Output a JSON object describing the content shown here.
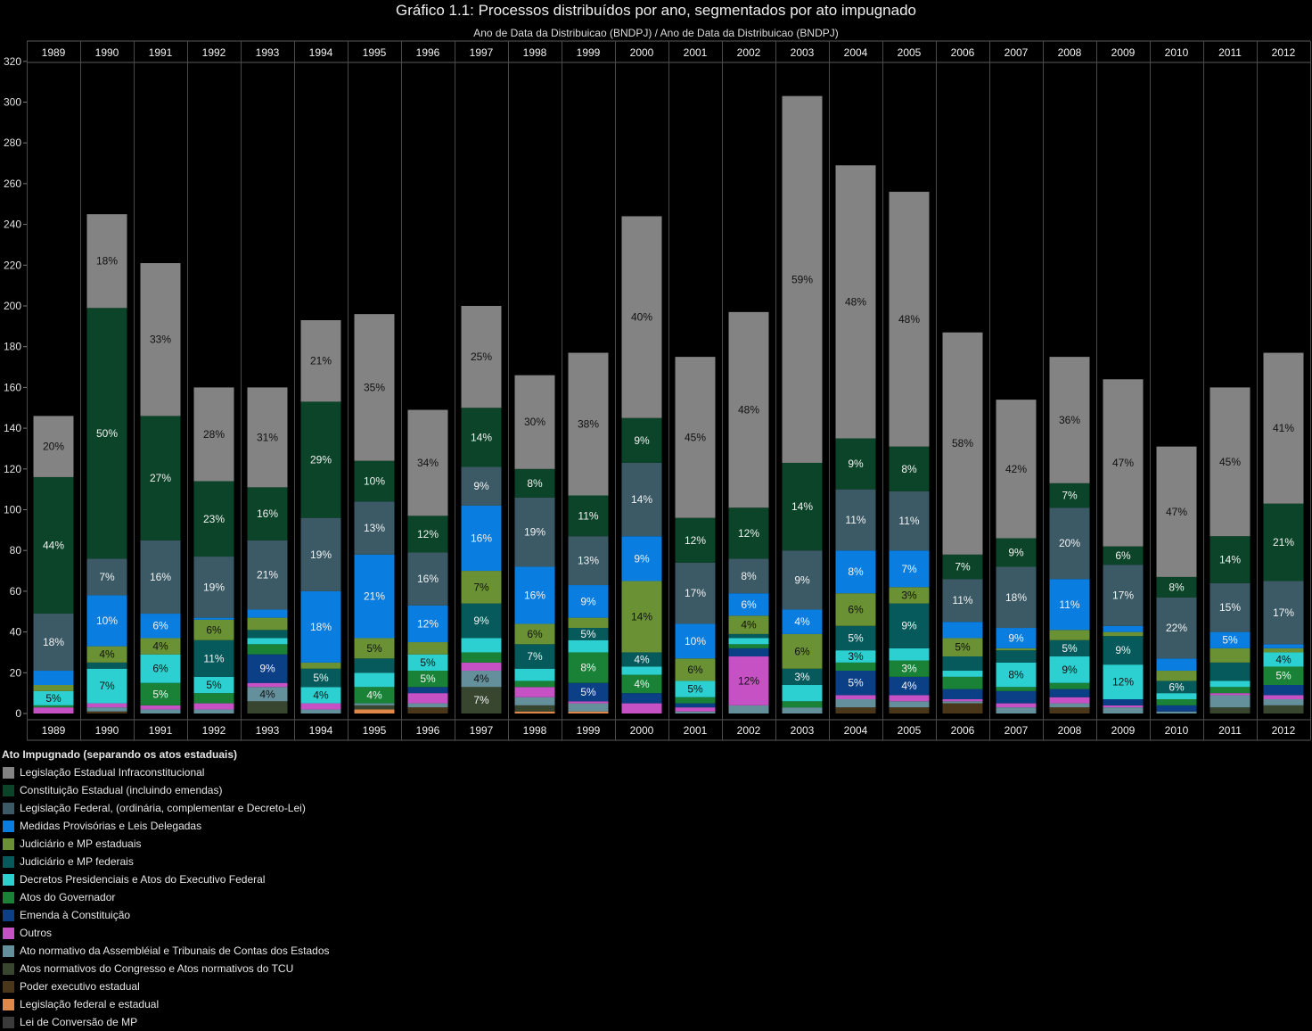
{
  "title": "Gráfico 1.1: Processos distribuídos por ano, segmentados por ato impugnado",
  "subtitle": "Ano de Data da Distribuicao (BNDPJ)  /  Ano de Data da Distribuicao (BNDPJ)",
  "legend": {
    "title": "Ato Impugnado (separando os atos estaduais)",
    "items": [
      {
        "label": "Legislação Estadual Infraconstitucional",
        "color": "#838383"
      },
      {
        "label": "Constituição Estadual (incluindo emendas)",
        "color": "#0b4428"
      },
      {
        "label": "Legislação Federal, (ordinária, complementar e Decreto-Lei)",
        "color": "#3b5a66"
      },
      {
        "label": "Medidas Provisórias e Leis Delegadas",
        "color": "#0a7de0"
      },
      {
        "label": "Judiciário e MP estaduais",
        "color": "#6a9234"
      },
      {
        "label": "Judiciário e MP federais",
        "color": "#075a5c"
      },
      {
        "label": "Decretos Presidenciais e Atos do Executivo Federal",
        "color": "#2dd0d0"
      },
      {
        "label": "Atos do Governador",
        "color": "#1a8236"
      },
      {
        "label": "Emenda à Constituição",
        "color": "#0b3f86"
      },
      {
        "label": "Outros",
        "color": "#c651c4"
      },
      {
        "label": "Ato normativo da Assembléial e Tribunais de Contas dos Estados",
        "color": "#64909c"
      },
      {
        "label": "Atos normativos do Congresso e Atos normativos do TCU",
        "color": "#384630"
      },
      {
        "label": "Poder executivo estadual",
        "color": "#4a3618"
      },
      {
        "label": "Legislação federal e estadual",
        "color": "#e0884a"
      },
      {
        "label": "Lei de Conversão de MP",
        "color": "#3b3b3b"
      }
    ]
  },
  "chart_data": {
    "type": "bar",
    "stacked": true,
    "title": "Gráfico 1.1: Processos distribuídos por ano, segmentados por ato impugnado",
    "xlabel": "Ano de Data da Distribuicao (BNDPJ)  /  Ano de Data da Distribuicao (BNDPJ)",
    "ylabel": "",
    "ylim": [
      0,
      320
    ],
    "yticks": [
      0,
      20,
      40,
      60,
      80,
      100,
      120,
      140,
      160,
      180,
      200,
      220,
      240,
      260,
      280,
      300,
      320
    ],
    "grid": false,
    "legend_position": "bottom-left",
    "categories": [
      "1989",
      "1990",
      "1991",
      "1992",
      "1993",
      "1994",
      "1995",
      "1996",
      "1997",
      "1998",
      "1999",
      "2000",
      "2001",
      "2002",
      "2003",
      "2004",
      "2005",
      "2006",
      "2007",
      "2008",
      "2009",
      "2010",
      "2011",
      "2012"
    ],
    "series": [
      {
        "name": "Lei de Conversão de MP",
        "color": "#3b3b3b",
        "values": [
          0,
          0,
          0,
          0,
          0,
          0,
          0,
          0,
          0,
          0,
          0,
          0,
          0,
          0,
          0,
          0,
          0,
          0,
          0,
          0,
          0,
          0,
          0,
          0
        ],
        "labels": [
          "",
          "",
          "",
          "",
          "",
          "",
          "",
          "",
          "",
          "",
          "",
          "",
          "",
          "",
          "",
          "",
          "",
          "",
          "",
          "",
          "",
          "",
          "",
          ""
        ]
      },
      {
        "name": "Legislação federal e estadual",
        "color": "#e0884a",
        "values": [
          0,
          0,
          0,
          0,
          0,
          0,
          2,
          0,
          0,
          1,
          1,
          0,
          0,
          0,
          0,
          0,
          0,
          0,
          0,
          0,
          0,
          0,
          0,
          0
        ],
        "labels": [
          "",
          "",
          "",
          "",
          "",
          "",
          "",
          "",
          "",
          "",
          "",
          "",
          "",
          "",
          "",
          "",
          "",
          "",
          "",
          "",
          "",
          "",
          "",
          ""
        ]
      },
      {
        "name": "Poder executivo estadual",
        "color": "#4a3618",
        "values": [
          0,
          1,
          0,
          0,
          0,
          0,
          0,
          3,
          0,
          0,
          0,
          0,
          0,
          0,
          0,
          3,
          3,
          5,
          0,
          3,
          0,
          0,
          0,
          0
        ],
        "labels": [
          "",
          "",
          "",
          "",
          "",
          "",
          "",
          "",
          "",
          "",
          "",
          "",
          "",
          "",
          "",
          "",
          "",
          "",
          "",
          "",
          "",
          "",
          "",
          ""
        ]
      },
      {
        "name": "Atos normativos do Congresso e Atos normativos do TCU",
        "color": "#384630",
        "values": [
          0,
          0,
          0,
          0,
          6,
          0,
          2,
          0,
          13,
          3,
          0,
          0,
          0,
          0,
          0,
          0,
          0,
          0,
          0,
          0,
          0,
          0,
          3,
          4
        ],
        "labels": [
          "",
          "",
          "",
          "",
          "",
          "",
          "",
          "",
          "7%",
          "",
          "",
          "",
          "",
          "",
          "",
          "",
          "",
          "",
          "",
          "",
          "",
          "",
          "",
          ""
        ]
      },
      {
        "name": "Ato normativo da Assembléial e Tribunais de Contas dos Estados",
        "color": "#64909c",
        "values": [
          0,
          2,
          2,
          2,
          7,
          2,
          1,
          2,
          8,
          4,
          4,
          0,
          1,
          4,
          3,
          4,
          3,
          1,
          3,
          2,
          3,
          1,
          6,
          3
        ],
        "labels": [
          "",
          "",
          "",
          "",
          "4%",
          "",
          "",
          "",
          "4%",
          "",
          "",
          "",
          "",
          "",
          "",
          "",
          "",
          "",
          "",
          "",
          "",
          "",
          "",
          ""
        ]
      },
      {
        "name": "Outros",
        "color": "#c651c4",
        "values": [
          3,
          2,
          2,
          3,
          2,
          3,
          0,
          5,
          4,
          5,
          1,
          5,
          2,
          24,
          0,
          2,
          3,
          1,
          2,
          3,
          1,
          0,
          1,
          2
        ],
        "labels": [
          "",
          "",
          "",
          "",
          "",
          "",
          "",
          "",
          "",
          "",
          "",
          "",
          "",
          "12%",
          "",
          "",
          "",
          "",
          "",
          "",
          "",
          "",
          "",
          ""
        ]
      },
      {
        "name": "Emenda à Constituição",
        "color": "#0b3f86",
        "values": [
          0,
          0,
          0,
          0,
          14,
          0,
          0,
          3,
          0,
          0,
          9,
          5,
          2,
          4,
          0,
          12,
          9,
          5,
          6,
          4,
          3,
          3,
          0,
          5
        ],
        "labels": [
          "",
          "",
          "",
          "",
          "9%",
          "",
          "",
          "",
          "",
          "",
          "5%",
          "",
          "",
          "",
          "",
          "5%",
          "4%",
          "",
          "",
          "",
          "",
          "",
          "",
          ""
        ]
      },
      {
        "name": "Atos do Governador",
        "color": "#1a8236",
        "values": [
          1,
          0,
          11,
          5,
          5,
          0,
          8,
          8,
          5,
          3,
          15,
          9,
          3,
          2,
          3,
          4,
          8,
          6,
          2,
          3,
          0,
          3,
          3,
          9
        ],
        "labels": [
          "",
          "",
          "5%",
          "",
          "",
          "",
          "4%",
          "5%",
          "",
          "",
          "8%",
          "4%",
          "",
          "",
          "",
          "",
          "3%",
          "",
          "",
          "",
          "",
          "",
          "",
          "5%"
        ]
      },
      {
        "name": "Decretos Presidenciais e Atos do Executivo Federal",
        "color": "#2dd0d0",
        "values": [
          7,
          17,
          14,
          8,
          3,
          8,
          7,
          8,
          7,
          6,
          6,
          4,
          8,
          3,
          8,
          6,
          6,
          3,
          12,
          13,
          17,
          3,
          3,
          7
        ],
        "labels": [
          "5%",
          "7%",
          "6%",
          "5%",
          "",
          "4%",
          "",
          "5%",
          "",
          "",
          "",
          "",
          "5%",
          "",
          "",
          "3%",
          "",
          "",
          "8%",
          "9%",
          "12%",
          "",
          "",
          "4%"
        ]
      },
      {
        "name": "Judiciário e MP federais",
        "color": "#075a5c",
        "values": [
          0,
          3,
          0,
          18,
          4,
          9,
          7,
          0,
          17,
          12,
          6,
          7,
          0,
          2,
          8,
          12,
          22,
          7,
          6,
          8,
          14,
          6,
          9,
          0
        ],
        "labels": [
          "",
          "",
          "",
          "11%",
          "",
          "5%",
          "",
          "",
          "9%",
          "7%",
          "5%",
          "4%",
          "",
          "",
          "3%",
          "5%",
          "9%",
          "",
          "",
          "5%",
          "9%",
          "6%",
          "",
          ""
        ]
      },
      {
        "name": "Judiciário e MP estaduais",
        "color": "#6a9234",
        "values": [
          3,
          8,
          8,
          10,
          6,
          3,
          10,
          6,
          16,
          10,
          5,
          35,
          11,
          9,
          17,
          16,
          8,
          9,
          1,
          5,
          2,
          5,
          7,
          2
        ],
        "labels": [
          "",
          "4%",
          "4%",
          "6%",
          "",
          "",
          "5%",
          "",
          "7%",
          "6%",
          "",
          "14%",
          "6%",
          "4%",
          "6%",
          "6%",
          "3%",
          "5%",
          "",
          "",
          "",
          "",
          "",
          ""
        ]
      },
      {
        "name": "Medidas Provisórias e Leis Delegadas",
        "color": "#0a7de0",
        "values": [
          7,
          25,
          12,
          1,
          4,
          35,
          41,
          18,
          32,
          28,
          16,
          22,
          17,
          11,
          12,
          21,
          18,
          8,
          10,
          25,
          3,
          6,
          8,
          2
        ],
        "labels": [
          "",
          "10%",
          "6%",
          "",
          "",
          "18%",
          "21%",
          "12%",
          "16%",
          "16%",
          "9%",
          "9%",
          "10%",
          "6%",
          "4%",
          "8%",
          "7%",
          "",
          "9%",
          "11%",
          "",
          "",
          "5%",
          ""
        ]
      },
      {
        "name": "Legislação Federal, (ordinária, complementar e Decreto-Lei)",
        "color": "#3b5a66",
        "values": [
          28,
          18,
          36,
          30,
          34,
          36,
          26,
          26,
          19,
          34,
          24,
          36,
          30,
          17,
          29,
          30,
          29,
          21,
          30,
          35,
          30,
          30,
          24,
          31
        ],
        "labels": [
          "18%",
          "7%",
          "16%",
          "19%",
          "21%",
          "19%",
          "13%",
          "16%",
          "9%",
          "19%",
          "13%",
          "14%",
          "17%",
          "8%",
          "9%",
          "11%",
          "11%",
          "11%",
          "18%",
          "20%",
          "17%",
          "22%",
          "15%",
          "17%"
        ]
      },
      {
        "name": "Constituição Estadual (incluindo emendas)",
        "color": "#0b4428",
        "values": [
          67,
          123,
          61,
          37,
          26,
          57,
          20,
          18,
          29,
          14,
          20,
          22,
          22,
          25,
          43,
          25,
          22,
          12,
          14,
          12,
          9,
          10,
          23,
          38
        ],
        "labels": [
          "44%",
          "50%",
          "27%",
          "23%",
          "16%",
          "29%",
          "10%",
          "12%",
          "14%",
          "8%",
          "11%",
          "9%",
          "12%",
          "12%",
          "14%",
          "9%",
          "8%",
          "7%",
          "9%",
          "7%",
          "6%",
          "8%",
          "14%",
          "21%"
        ]
      },
      {
        "name": "Legislação Estadual Infraconstitucional",
        "color": "#838383",
        "values": [
          30,
          46,
          75,
          46,
          49,
          40,
          72,
          52,
          50,
          46,
          70,
          99,
          79,
          96,
          180,
          134,
          125,
          109,
          68,
          62,
          82,
          64,
          73,
          74
        ],
        "labels": [
          "20%",
          "18%",
          "33%",
          "28%",
          "31%",
          "21%",
          "35%",
          "34%",
          "25%",
          "30%",
          "38%",
          "40%",
          "45%",
          "48%",
          "59%",
          "48%",
          "48%",
          "58%",
          "42%",
          "36%",
          "47%",
          "47%",
          "45%",
          "41%"
        ]
      }
    ]
  }
}
